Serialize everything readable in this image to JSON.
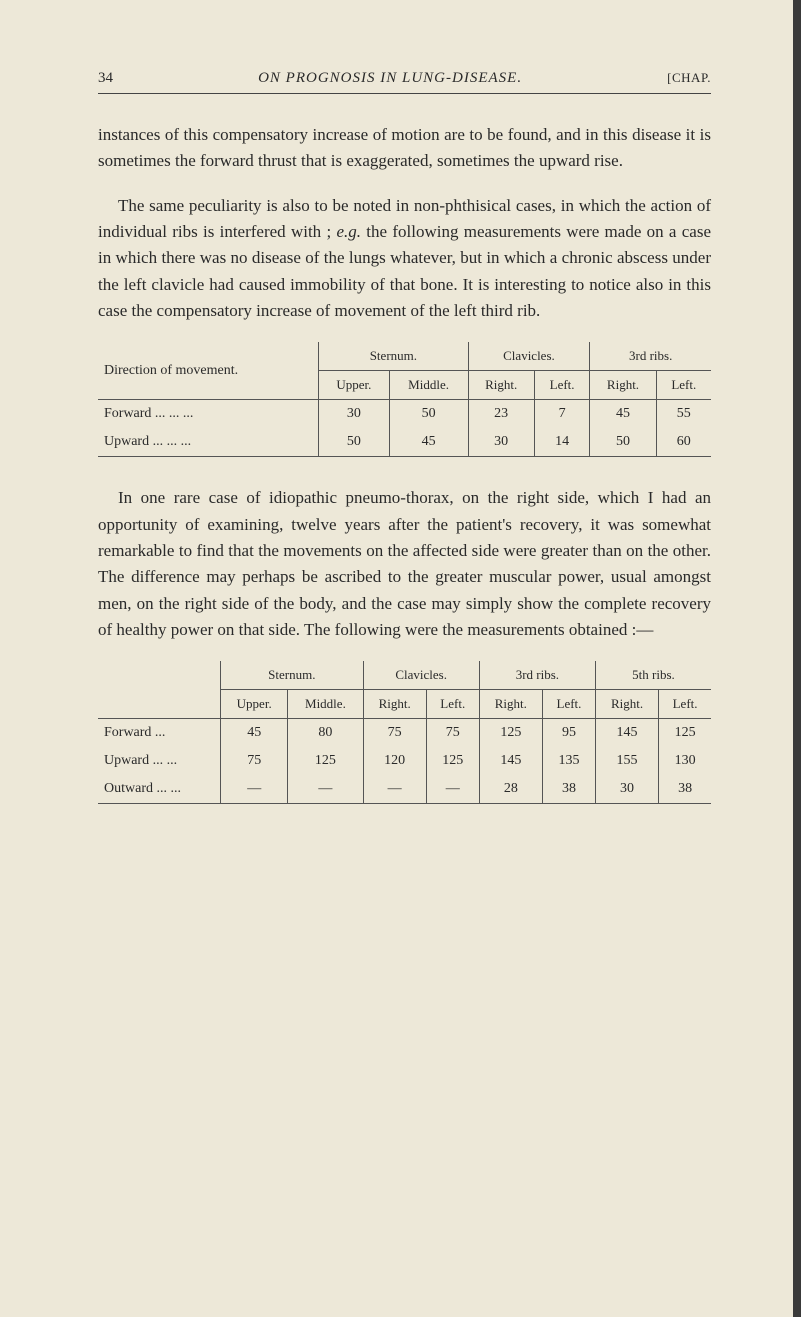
{
  "page": {
    "number": "34",
    "running_title": "ON PROGNOSIS IN LUNG-DISEASE.",
    "chap": "[CHAP."
  },
  "para1": "instances of this compensatory increase of motion are to be found, and in this disease it is sometimes the forward thrust that is exaggerated, sometimes the upward rise.",
  "para2a": "The same peculiarity is also to be noted in non-phthisical cases, in which the action of individual ribs is interfered with ; ",
  "para2b": "e.g.",
  "para2c": " the following measurements were made on a case in which there was no disease of the lungs whatever, but in which a chronic abscess under the left clavicle had caused immobility of that bone. It is interesting to notice also in this case the compensatory increase of movement of the left third rib.",
  "table1": {
    "direction_label": "Direction of movement.",
    "groups": [
      "Sternum.",
      "Clavicles.",
      "3rd ribs."
    ],
    "subs": [
      "Upper.",
      "Middle.",
      "Right.",
      "Left.",
      "Right.",
      "Left."
    ],
    "rows": [
      {
        "label": "Forward    ...    ...    ...",
        "vals": [
          "30",
          "50",
          "23",
          "7",
          "45",
          "55"
        ]
      },
      {
        "label": "Upward     ...    ...    ...",
        "vals": [
          "50",
          "45",
          "30",
          "14",
          "50",
          "60"
        ]
      }
    ]
  },
  "para3": "In one rare case of idiopathic pneumo-thorax, on the right side, which I had an opportunity of examining, twelve years after the patient's recovery, it was somewhat remarkable to find that the movements on the affected side were greater than on the other. The difference may perhaps be ascribed to the greater muscular power, usual amongst men, on the right side of the body, and the case may simply show the complete recovery of healthy power on that side. The following were the measurements obtained :—",
  "table2": {
    "groups": [
      "Sternum.",
      "Clavicles.",
      "3rd ribs.",
      "5th ribs."
    ],
    "subs": [
      "Upper.",
      "Middle.",
      "Right.",
      "Left.",
      "Right.",
      "Left.",
      "Right.",
      "Left."
    ],
    "rows": [
      {
        "label": "Forward     ...",
        "vals": [
          "45",
          "80",
          "75",
          "75",
          "125",
          "95",
          "145",
          "125"
        ]
      },
      {
        "label": "Upward  ...   ...",
        "vals": [
          "75",
          "125",
          "120",
          "125",
          "145",
          "135",
          "155",
          "130"
        ]
      },
      {
        "label": "Outward ...   ...",
        "vals": [
          "—",
          "—",
          "—",
          "—",
          "28",
          "38",
          "30",
          "38"
        ]
      }
    ]
  },
  "colors": {
    "background": "#ede8d8",
    "text": "#2a2a2a",
    "rule": "#555555"
  }
}
